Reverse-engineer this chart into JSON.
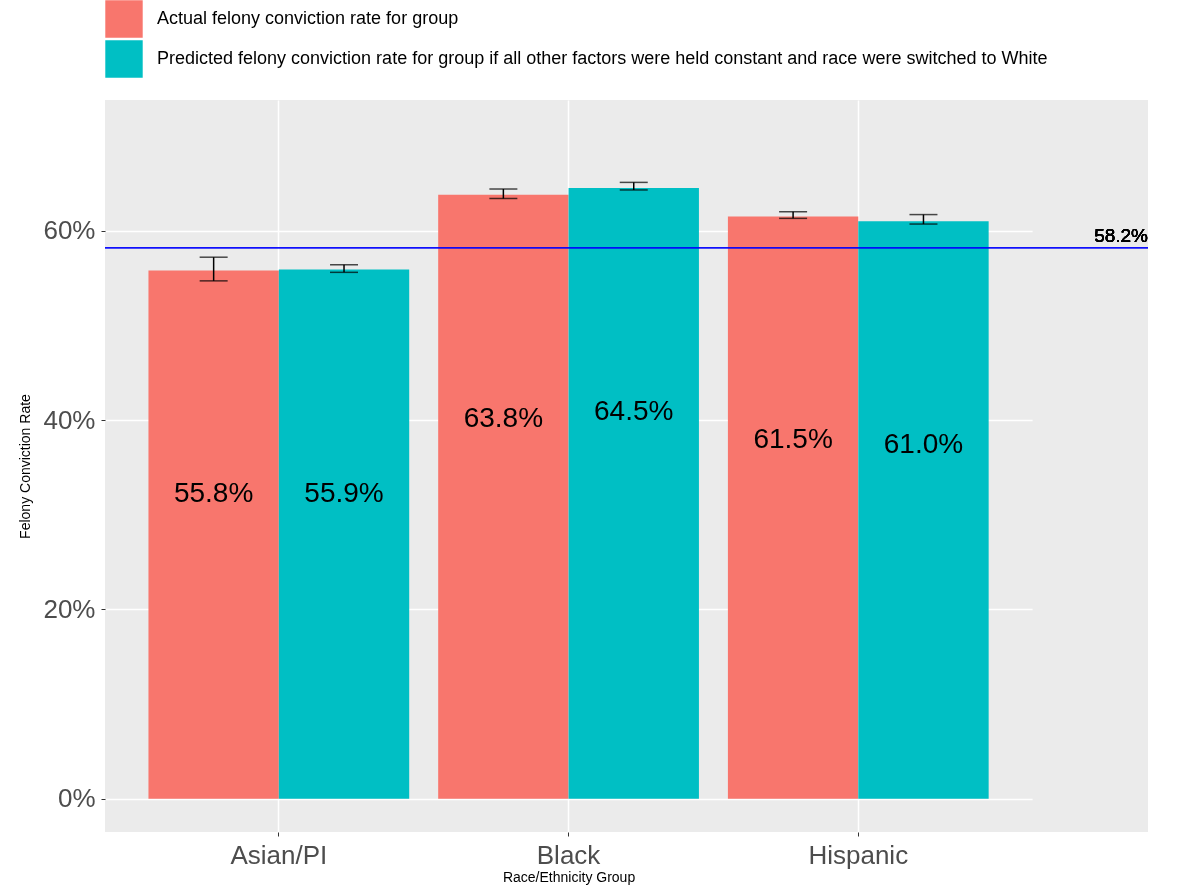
{
  "chart_data": {
    "type": "bar",
    "xlabel": "Race/Ethnicity Group",
    "ylabel": "Felony Conviction Rate",
    "categories": [
      "Asian/PI",
      "Black",
      "Hispanic"
    ],
    "series": [
      {
        "name": "Actual felony conviction rate for group",
        "color": "#f8766d",
        "values": [
          55.8,
          63.8,
          61.5
        ],
        "value_labels": [
          "55.8%",
          "63.8%",
          "61.5%"
        ],
        "errors": [
          [
            54.7,
            57.2
          ],
          [
            63.4,
            64.4
          ],
          [
            61.3,
            62.0
          ]
        ]
      },
      {
        "name": "Predicted felony conviction rate for group if all other factors were held constant and race were switched to White",
        "color": "#00bfc4",
        "values": [
          55.9,
          64.5,
          61.0
        ],
        "value_labels": [
          "55.9%",
          "64.5%",
          "61.0%"
        ],
        "errors": [
          [
            55.6,
            56.4
          ],
          [
            64.3,
            65.1
          ],
          [
            60.7,
            61.7
          ]
        ]
      }
    ],
    "ylim": [
      -3.5,
      73.8
    ],
    "yticks": [
      {
        "value": 0,
        "label": "0%"
      },
      {
        "value": 20,
        "label": "20%"
      },
      {
        "value": 40,
        "label": "40%"
      },
      {
        "value": 60,
        "label": "60%"
      }
    ],
    "ref_lines": [
      {
        "axis": "y",
        "value": 58.2,
        "label": "58.2%",
        "color": "#0000ff"
      }
    ],
    "grid": true,
    "legend": "top left"
  }
}
